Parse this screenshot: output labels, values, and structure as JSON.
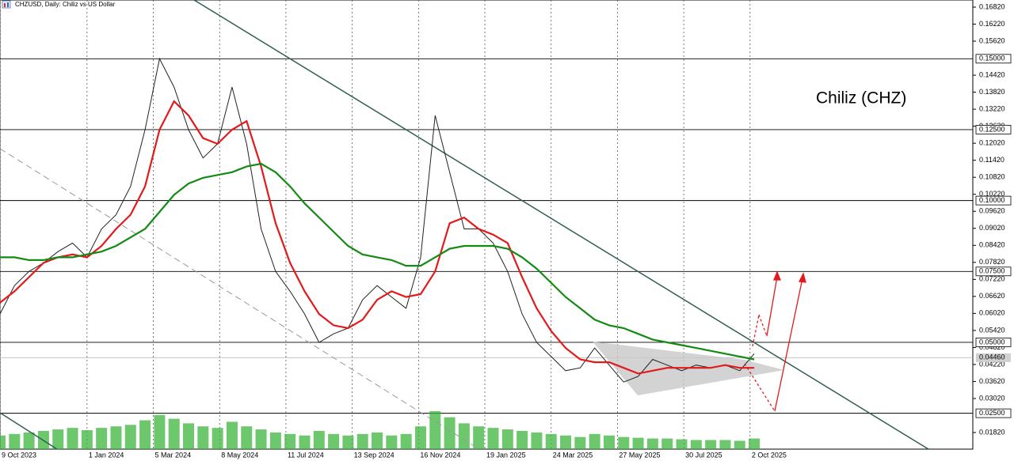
{
  "chart_data": {
    "type": "line",
    "title": "CHZUSD, Daily: Chiliz vs US Dollar",
    "annotation": "Chiliz (CHZ)",
    "xlim": [
      "2023-10-09",
      "2026-05-05"
    ],
    "ylim": [
      0.01235,
      0.17071
    ],
    "xticks": [
      {
        "value": "2023-10-09",
        "label": "9 Oct 2023"
      },
      {
        "value": "2024-01-01",
        "label": "1 Jan 2024"
      },
      {
        "value": "2024-03-05",
        "label": "5 Mar 2024"
      },
      {
        "value": "2024-05-08",
        "label": "8 May 2024"
      },
      {
        "value": "2024-07-11",
        "label": "11 Jul 2024"
      },
      {
        "value": "2024-09-13",
        "label": "13 Sep 2024"
      },
      {
        "value": "2024-11-16",
        "label": "16 Nov 2024"
      },
      {
        "value": "2025-01-19",
        "label": "19 Jan 2025"
      },
      {
        "value": "2025-03-24",
        "label": "24 Mar 2025"
      },
      {
        "value": "2025-05-27",
        "label": "27 May 2025"
      },
      {
        "value": "2025-07-30",
        "label": "30 Jul 2025"
      },
      {
        "value": "2025-10-02",
        "label": "2 Oct 2025"
      }
    ],
    "yticks": [
      {
        "value": 0.1682,
        "label": "0.16820"
      },
      {
        "value": 0.1622,
        "label": "0.16220"
      },
      {
        "value": 0.1562,
        "label": "0.15620"
      },
      {
        "value": 0.1442,
        "label": "0.14420"
      },
      {
        "value": 0.1382,
        "label": "0.13820"
      },
      {
        "value": 0.1322,
        "label": "0.13220"
      },
      {
        "value": 0.1262,
        "label": "0.12620"
      },
      {
        "value": 0.1202,
        "label": "0.12020"
      },
      {
        "value": 0.1142,
        "label": "0.11420"
      },
      {
        "value": 0.1082,
        "label": "0.10820"
      },
      {
        "value": 0.1022,
        "label": "0.10220"
      },
      {
        "value": 0.0962,
        "label": "0.09620"
      },
      {
        "value": 0.0902,
        "label": "0.09020"
      },
      {
        "value": 0.0842,
        "label": "0.08420"
      },
      {
        "value": 0.0782,
        "label": "0.07820"
      },
      {
        "value": 0.0722,
        "label": "0.07220"
      },
      {
        "value": 0.0662,
        "label": "0.06620"
      },
      {
        "value": 0.0602,
        "label": "0.06020"
      },
      {
        "value": 0.0542,
        "label": "0.05420"
      },
      {
        "value": 0.0482,
        "label": "0.04820"
      },
      {
        "value": 0.0422,
        "label": "0.04220"
      },
      {
        "value": 0.0362,
        "label": "0.03620"
      },
      {
        "value": 0.0302,
        "label": "0.03020"
      },
      {
        "value": 0.0182,
        "label": "0.01820"
      }
    ],
    "levels": [
      {
        "value": 0.15,
        "label": "0.15000"
      },
      {
        "value": 0.125,
        "label": "0.12500"
      },
      {
        "value": 0.1,
        "label": "0.10000"
      },
      {
        "value": 0.075,
        "label": "0.07500"
      },
      {
        "value": 0.05,
        "label": "0.05000"
      },
      {
        "value": 0.025,
        "label": "0.02500"
      }
    ],
    "current_price": {
      "value": 0.0446,
      "label": "0.04460"
    },
    "x": [
      "2023-10-09",
      "2023-10-23",
      "2023-11-06",
      "2023-11-20",
      "2023-12-04",
      "2023-12-18",
      "2024-01-01",
      "2024-01-15",
      "2024-01-29",
      "2024-02-12",
      "2024-02-26",
      "2024-03-11",
      "2024-03-25",
      "2024-04-08",
      "2024-04-22",
      "2024-05-06",
      "2024-05-20",
      "2024-06-03",
      "2024-06-17",
      "2024-07-01",
      "2024-07-15",
      "2024-07-29",
      "2024-08-12",
      "2024-08-26",
      "2024-09-09",
      "2024-09-23",
      "2024-10-07",
      "2024-10-21",
      "2024-11-04",
      "2024-11-18",
      "2024-12-02",
      "2024-12-16",
      "2024-12-30",
      "2025-01-13",
      "2025-01-27",
      "2025-02-10",
      "2025-02-24",
      "2025-03-10",
      "2025-03-24",
      "2025-04-07",
      "2025-04-21",
      "2025-05-05",
      "2025-05-19",
      "2025-06-02",
      "2025-06-16",
      "2025-06-30",
      "2025-07-14",
      "2025-07-28",
      "2025-08-11",
      "2025-08-25",
      "2025-09-08",
      "2025-09-22",
      "2025-10-06"
    ],
    "series": [
      {
        "color": "#222222",
        "values": [
          0.06,
          0.07,
          0.075,
          0.078,
          0.082,
          0.085,
          0.08,
          0.09,
          0.095,
          0.105,
          0.125,
          0.15,
          0.14,
          0.125,
          0.115,
          0.12,
          0.14,
          0.12,
          0.09,
          0.075,
          0.068,
          0.06,
          0.05,
          0.053,
          0.055,
          0.065,
          0.07,
          0.066,
          0.062,
          0.08,
          0.13,
          0.11,
          0.09,
          0.09,
          0.085,
          0.075,
          0.06,
          0.05,
          0.045,
          0.04,
          0.041,
          0.048,
          0.042,
          0.036,
          0.038,
          0.044,
          0.042,
          0.04,
          0.042,
          0.041,
          0.042,
          0.04,
          0.046
        ]
      },
      {
        "color": "#e31a1c",
        "values": [
          0.064,
          0.068,
          0.073,
          0.078,
          0.08,
          0.081,
          0.08,
          0.084,
          0.09,
          0.095,
          0.105,
          0.125,
          0.135,
          0.13,
          0.122,
          0.12,
          0.125,
          0.128,
          0.112,
          0.092,
          0.078,
          0.068,
          0.06,
          0.056,
          0.055,
          0.058,
          0.065,
          0.068,
          0.066,
          0.067,
          0.075,
          0.092,
          0.094,
          0.09,
          0.088,
          0.085,
          0.073,
          0.062,
          0.054,
          0.048,
          0.044,
          0.043,
          0.043,
          0.041,
          0.039,
          0.04,
          0.041,
          0.041,
          0.041,
          0.041,
          0.042,
          0.041,
          0.041
        ]
      },
      {
        "color": "#138a13",
        "values": [
          0.08,
          0.08,
          0.079,
          0.079,
          0.08,
          0.08,
          0.081,
          0.082,
          0.084,
          0.087,
          0.09,
          0.096,
          0.102,
          0.106,
          0.108,
          0.109,
          0.11,
          0.112,
          0.113,
          0.11,
          0.105,
          0.099,
          0.094,
          0.089,
          0.084,
          0.081,
          0.08,
          0.079,
          0.077,
          0.077,
          0.08,
          0.083,
          0.084,
          0.084,
          0.084,
          0.083,
          0.08,
          0.076,
          0.071,
          0.066,
          0.062,
          0.058,
          0.056,
          0.055,
          0.053,
          0.051,
          0.05,
          0.049,
          0.048,
          0.047,
          0.046,
          0.045,
          0.044
        ]
      }
    ],
    "volume": {
      "color": "#3cb43c",
      "values": [
        18,
        20,
        22,
        24,
        26,
        28,
        25,
        28,
        30,
        32,
        38,
        45,
        40,
        34,
        30,
        28,
        36,
        30,
        26,
        22,
        20,
        18,
        24,
        20,
        18,
        20,
        22,
        18,
        20,
        30,
        50,
        42,
        34,
        30,
        28,
        26,
        24,
        22,
        20,
        18,
        16,
        20,
        18,
        16,
        15,
        14,
        14,
        13,
        12,
        12,
        12,
        11,
        14
      ]
    },
    "grid": true
  }
}
